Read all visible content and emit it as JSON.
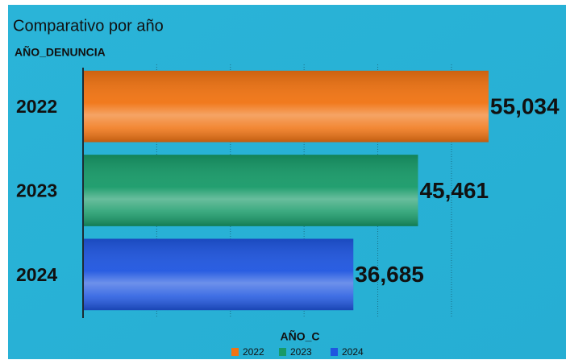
{
  "chart_data": {
    "type": "bar",
    "orientation": "horizontal",
    "title": "Comparativo por año",
    "y_axis_label": "AÑO_DENUNCIA",
    "categories": [
      "2022",
      "2023",
      "2024"
    ],
    "values": [
      55034,
      45461,
      36685
    ],
    "value_labels": [
      "55,034",
      "45,461",
      "36,685"
    ],
    "colors": [
      "#f07312",
      "#179a68",
      "#1f56e0"
    ],
    "xlim": [
      0,
      65000
    ],
    "xticks": [
      10000,
      20000,
      30000,
      40000,
      50000
    ],
    "grid": true,
    "legend": {
      "title": "AÑO_C",
      "position": "bottom"
    }
  }
}
